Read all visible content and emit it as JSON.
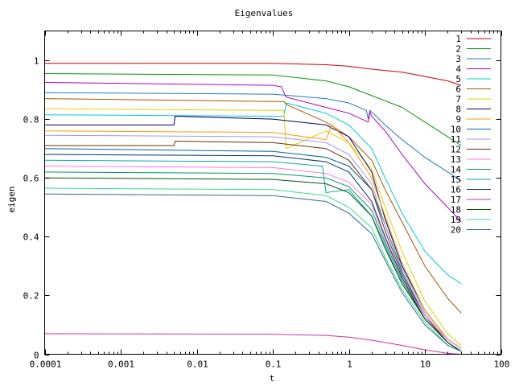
{
  "chart_data": {
    "type": "line",
    "title": "Eigenvalues",
    "xlabel": "t",
    "ylabel": "eigen",
    "xscale": "log",
    "xlim": [
      0.0001,
      100
    ],
    "ylim": [
      0,
      1.1
    ],
    "xticks": [
      {
        "value": 0.0001,
        "label": "0.0001"
      },
      {
        "value": 0.001,
        "label": "0.001"
      },
      {
        "value": 0.01,
        "label": "0.01"
      },
      {
        "value": 0.1,
        "label": "0.1"
      },
      {
        "value": 1,
        "label": "1"
      },
      {
        "value": 10,
        "label": "10"
      },
      {
        "value": 100,
        "label": "100"
      }
    ],
    "yticks": [
      {
        "value": 0,
        "label": "0"
      },
      {
        "value": 0.2,
        "label": "0.2"
      },
      {
        "value": 0.4,
        "label": "0.4"
      },
      {
        "value": 0.6,
        "label": "0.6"
      },
      {
        "value": 0.8,
        "label": "0.8"
      },
      {
        "value": 1,
        "label": "1"
      }
    ],
    "grid": false,
    "legend_position": "top-right",
    "series": [
      {
        "name": "1",
        "color": "#cc0000",
        "x": [
          0.0001,
          0.1,
          0.5,
          1,
          2,
          5,
          10,
          20,
          30
        ],
        "y": [
          0.99,
          0.99,
          0.985,
          0.98,
          0.97,
          0.96,
          0.945,
          0.93,
          0.915
        ]
      },
      {
        "name": "2",
        "color": "#009900",
        "x": [
          0.0001,
          0.1,
          0.5,
          1,
          2,
          5,
          10,
          20,
          30
        ],
        "y": [
          0.955,
          0.95,
          0.93,
          0.91,
          0.88,
          0.84,
          0.79,
          0.74,
          0.71
        ]
      },
      {
        "name": "3",
        "color": "#1f77d0",
        "x": [
          0.0001,
          0.1,
          0.5,
          1,
          1.7,
          1.8,
          1.9,
          3,
          5,
          10,
          20,
          30
        ],
        "y": [
          0.89,
          0.885,
          0.87,
          0.855,
          0.83,
          0.8,
          0.83,
          0.78,
          0.73,
          0.67,
          0.62,
          0.59
        ]
      },
      {
        "name": "4",
        "color": "#aa00cc",
        "x": [
          0.0001,
          0.1,
          0.13,
          0.14,
          0.15,
          0.5,
          1,
          1.8,
          1.9,
          2.0,
          3,
          5,
          10,
          20,
          30
        ],
        "y": [
          0.925,
          0.915,
          0.91,
          0.89,
          0.875,
          0.84,
          0.82,
          0.79,
          0.825,
          0.81,
          0.76,
          0.68,
          0.58,
          0.5,
          0.45
        ]
      },
      {
        "name": "5",
        "color": "#00cccc",
        "x": [
          0.0001,
          0.1,
          0.14,
          0.15,
          0.5,
          1,
          2,
          3,
          5,
          10,
          20,
          30
        ],
        "y": [
          0.815,
          0.81,
          0.81,
          0.855,
          0.82,
          0.78,
          0.7,
          0.6,
          0.48,
          0.35,
          0.27,
          0.24
        ]
      },
      {
        "name": "6",
        "color": "#aa5500",
        "x": [
          0.0001,
          0.1,
          0.14,
          0.15,
          0.5,
          1,
          2,
          3,
          5,
          10,
          20,
          30
        ],
        "y": [
          0.87,
          0.86,
          0.86,
          0.85,
          0.79,
          0.74,
          0.66,
          0.56,
          0.45,
          0.3,
          0.19,
          0.14
        ]
      },
      {
        "name": "7",
        "color": "#e6d000",
        "x": [
          0.0001,
          0.1,
          0.14,
          0.15,
          0.5,
          1,
          2,
          3,
          5,
          10,
          20,
          30
        ],
        "y": [
          0.835,
          0.83,
          0.83,
          0.7,
          0.76,
          0.72,
          0.63,
          0.5,
          0.35,
          0.18,
          0.07,
          0.03
        ]
      },
      {
        "name": "8",
        "color": "#000066",
        "x": [
          0.0001,
          0.005,
          0.0052,
          0.1,
          0.5,
          1,
          2,
          3,
          5,
          10,
          20,
          30
        ],
        "y": [
          0.78,
          0.78,
          0.81,
          0.8,
          0.78,
          0.74,
          0.62,
          0.46,
          0.3,
          0.15,
          0.05,
          0.02
        ]
      },
      {
        "name": "9",
        "color": "#ff9900",
        "x": [
          0.0001,
          0.1,
          0.5,
          0.6,
          1,
          2,
          3,
          5,
          10,
          20,
          30
        ],
        "y": [
          0.76,
          0.755,
          0.73,
          0.78,
          0.72,
          0.6,
          0.47,
          0.31,
          0.15,
          0.05,
          0.02
        ]
      },
      {
        "name": "10",
        "color": "#006699",
        "x": [
          0.0001,
          0.1,
          0.5,
          1,
          2,
          3,
          5,
          10,
          20,
          30
        ],
        "y": [
          0.7,
          0.69,
          0.67,
          0.64,
          0.56,
          0.44,
          0.28,
          0.13,
          0.04,
          0.01
        ]
      },
      {
        "name": "11",
        "color": "#9999ff",
        "x": [
          0.0001,
          0.1,
          0.5,
          1,
          2,
          3,
          5,
          10,
          20,
          30
        ],
        "y": [
          0.745,
          0.74,
          0.72,
          0.68,
          0.58,
          0.44,
          0.29,
          0.14,
          0.04,
          0.01
        ]
      },
      {
        "name": "12",
        "color": "#663300",
        "x": [
          0.0001,
          0.005,
          0.0052,
          0.1,
          0.5,
          1,
          2,
          3,
          5,
          10,
          20,
          30
        ],
        "y": [
          0.71,
          0.71,
          0.725,
          0.72,
          0.7,
          0.66,
          0.56,
          0.42,
          0.27,
          0.13,
          0.04,
          0.01
        ]
      },
      {
        "name": "13",
        "color": "#ff77dd",
        "x": [
          0.0001,
          0.1,
          0.5,
          1,
          2,
          3,
          5,
          10,
          20,
          30
        ],
        "y": [
          0.64,
          0.635,
          0.615,
          0.585,
          0.51,
          0.39,
          0.26,
          0.13,
          0.05,
          0.02
        ]
      },
      {
        "name": "14",
        "color": "#009966",
        "x": [
          0.0001,
          0.1,
          0.5,
          1,
          2,
          3,
          5,
          10,
          20,
          30
        ],
        "y": [
          0.62,
          0.615,
          0.6,
          0.57,
          0.49,
          0.38,
          0.25,
          0.12,
          0.04,
          0.01
        ]
      },
      {
        "name": "15",
        "color": "#00aaaa",
        "x": [
          0.0001,
          0.1,
          0.45,
          0.5,
          1,
          2,
          3,
          5,
          10,
          20,
          30
        ],
        "y": [
          0.66,
          0.655,
          0.64,
          0.55,
          0.56,
          0.47,
          0.37,
          0.24,
          0.12,
          0.04,
          0.01
        ]
      },
      {
        "name": "16",
        "color": "#003366",
        "x": [
          0.0001,
          0.1,
          0.5,
          1,
          2,
          3,
          5,
          10,
          20,
          30
        ],
        "y": [
          0.68,
          0.675,
          0.655,
          0.62,
          0.52,
          0.4,
          0.26,
          0.12,
          0.04,
          0.01
        ]
      },
      {
        "name": "17",
        "color": "#cc3399",
        "x": [
          0.0001,
          0.1,
          0.5,
          1,
          2,
          5,
          10,
          20,
          30
        ],
        "y": [
          0.07,
          0.068,
          0.064,
          0.058,
          0.048,
          0.03,
          0.015,
          0.003,
          0.0
        ]
      },
      {
        "name": "18",
        "color": "#005500",
        "x": [
          0.0001,
          0.1,
          0.5,
          1,
          2,
          3,
          5,
          10,
          20,
          30
        ],
        "y": [
          0.6,
          0.595,
          0.58,
          0.55,
          0.47,
          0.36,
          0.24,
          0.12,
          0.04,
          0.01
        ]
      },
      {
        "name": "19",
        "color": "#33dd88",
        "x": [
          0.0001,
          0.1,
          0.5,
          1,
          2,
          3,
          5,
          10,
          20,
          30
        ],
        "y": [
          0.565,
          0.56,
          0.54,
          0.5,
          0.43,
          0.33,
          0.22,
          0.11,
          0.03,
          0.01
        ]
      },
      {
        "name": "20",
        "color": "#336699",
        "x": [
          0.0001,
          0.1,
          0.5,
          1,
          2,
          3,
          5,
          10,
          20,
          30
        ],
        "y": [
          0.545,
          0.54,
          0.52,
          0.48,
          0.41,
          0.32,
          0.21,
          0.1,
          0.03,
          0.01
        ]
      }
    ]
  }
}
